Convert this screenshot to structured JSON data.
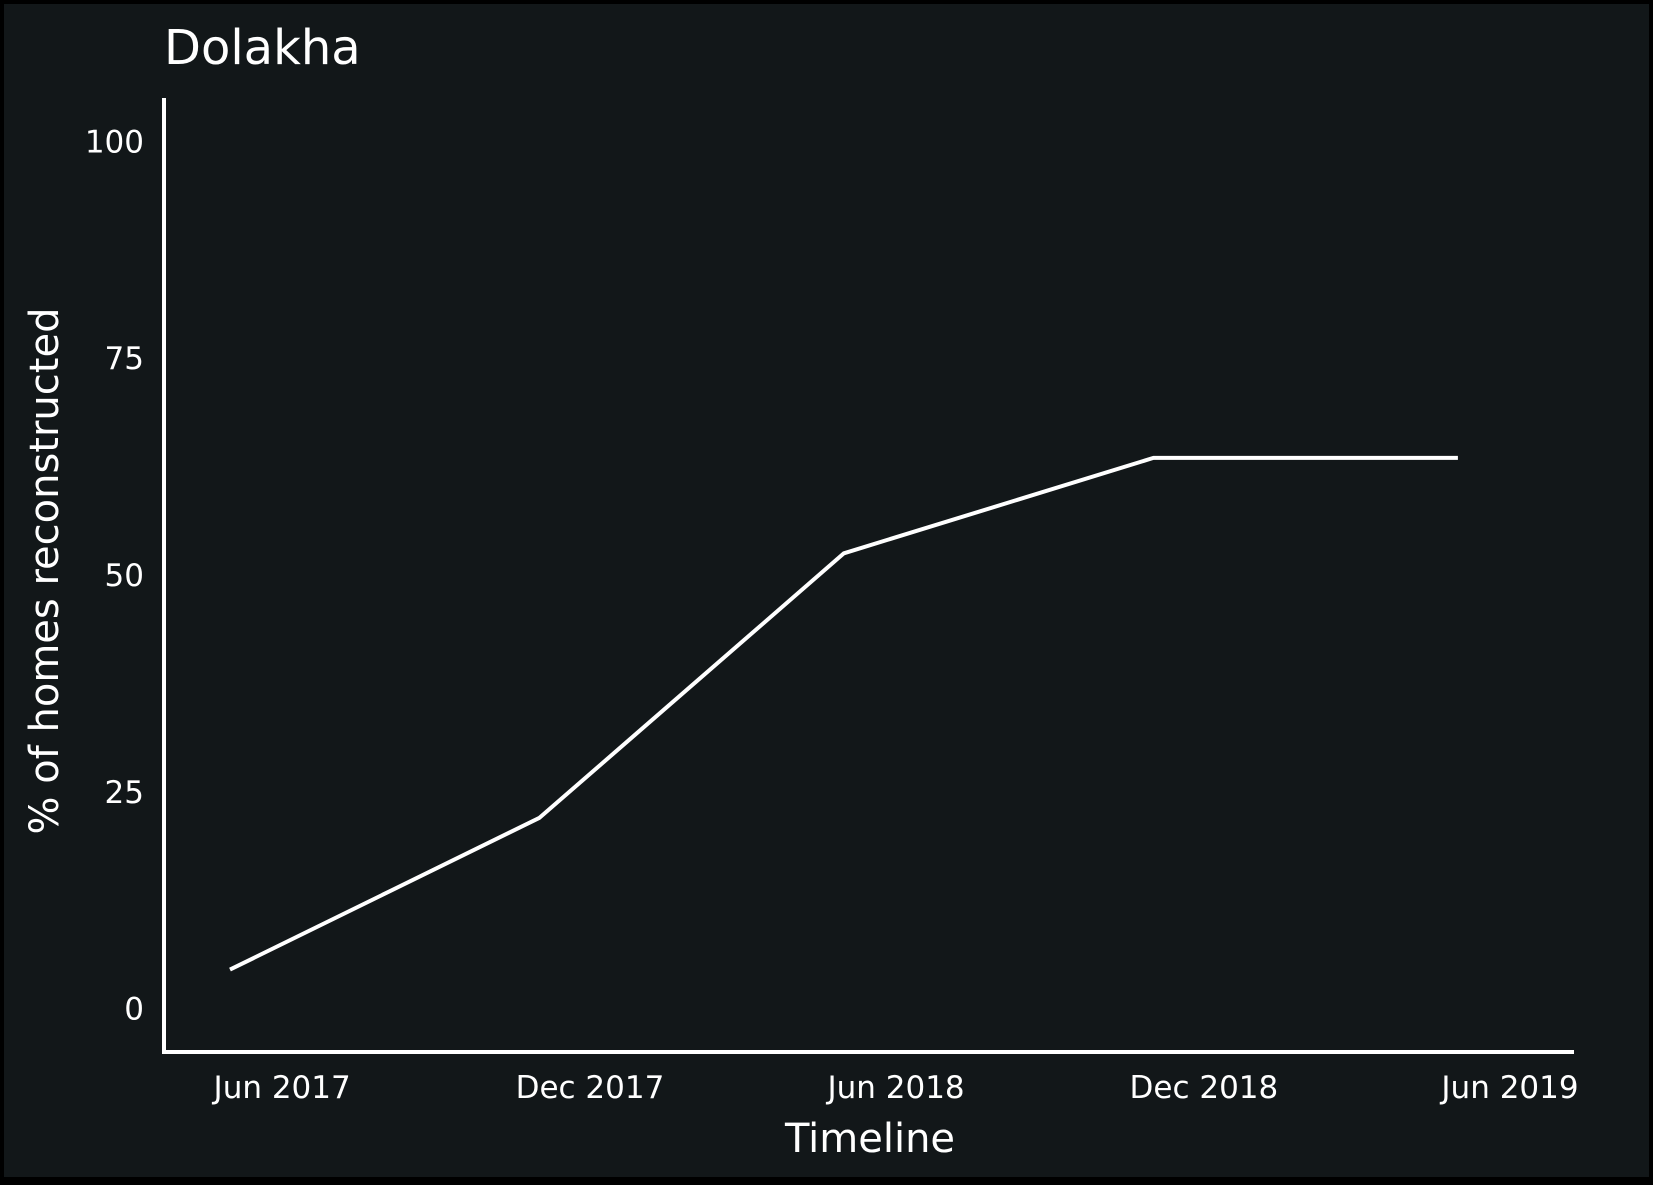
{
  "chart_data": {
    "type": "line",
    "title": "Dolakha",
    "xlabel": "Timeline",
    "ylabel": "% of homes reconstructed",
    "x_tick_labels": [
      {
        "label": "Jun 2017",
        "date": "2017-06-01"
      },
      {
        "label": "Dec 2017",
        "date": "2017-12-01"
      },
      {
        "label": "Jun 2018",
        "date": "2018-06-01"
      },
      {
        "label": "Dec 2018",
        "date": "2018-12-01"
      },
      {
        "label": "Jun 2019",
        "date": "2019-06-01"
      }
    ],
    "y_ticks": [
      0,
      25,
      50,
      75,
      100
    ],
    "ylim": [
      -5,
      105
    ],
    "xlim": [
      "2017-05-01",
      "2019-06-01"
    ],
    "grid": false,
    "series": [
      {
        "color": "#ffffff",
        "points": [
          {
            "x": "2017-05-01",
            "y": 4.5
          },
          {
            "x": "2017-11-01",
            "y": 22
          },
          {
            "x": "2018-05-01",
            "y": 52.5
          },
          {
            "x": "2018-11-01",
            "y": 63.5
          },
          {
            "x": "2019-05-01",
            "y": 63.5
          }
        ]
      }
    ],
    "colors": {
      "background": "#121719",
      "foreground": "#ffffff"
    }
  }
}
